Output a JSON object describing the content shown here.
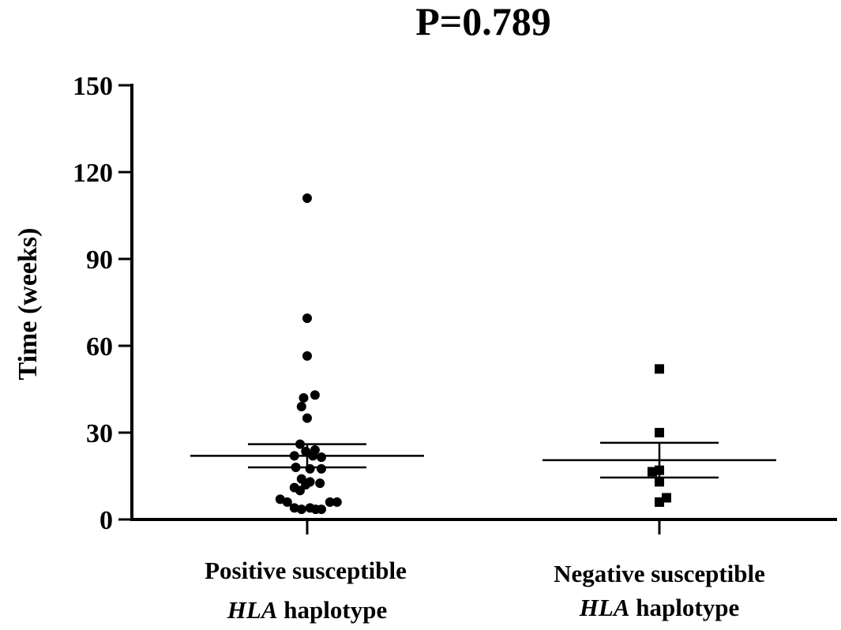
{
  "chart_data": {
    "type": "scatter",
    "title": "P=0.789",
    "ylabel": "Time (weeks)",
    "xlabel": "",
    "ylim": [
      0,
      150
    ],
    "yticks": [
      0,
      30,
      60,
      90,
      120,
      150
    ],
    "ytick_labels": [
      "0",
      "30",
      "60",
      "90",
      "120",
      "150"
    ],
    "grid": false,
    "categories": [
      {
        "line1": "Positive susceptible",
        "line2_italic": "HLA",
        "line2_rest": " haplotype"
      },
      {
        "line1": "Negative susceptible",
        "line2_italic": "HLA",
        "line2_rest": " haplotype"
      }
    ],
    "series": [
      {
        "name": "Positive susceptible HLA haplotype",
        "marker": "circle",
        "values": [
          111,
          69.5,
          56.5,
          43,
          42,
          39,
          35,
          26,
          24,
          23.5,
          22,
          22,
          21.5,
          18,
          17.5,
          17.5,
          14,
          13,
          12.5,
          12,
          11,
          10,
          7,
          6,
          6,
          6,
          4,
          4,
          3.5,
          3.5,
          3.5
        ],
        "offsets": [
          0,
          0,
          0,
          0.55,
          -0.25,
          -0.4,
          0,
          -0.5,
          0.55,
          -0.1,
          -0.9,
          0.4,
          1.0,
          -0.8,
          0.2,
          1.0,
          -0.4,
          0.2,
          0.9,
          -0.1,
          -0.9,
          -0.5,
          -1.9,
          -1.4,
          1.6,
          2.1,
          -0.9,
          0.2,
          -0.4,
          0.6,
          1.0
        ],
        "mean": 22,
        "sem_low": 18,
        "sem_high": 26
      },
      {
        "name": "Negative susceptible HLA haplotype",
        "marker": "square",
        "values": [
          52,
          30,
          17,
          16.5,
          13,
          7.5,
          6
        ],
        "offsets": [
          0,
          0,
          0,
          -0.5,
          0,
          0.5,
          0
        ],
        "mean": 20.5,
        "sem_low": 14.5,
        "sem_high": 26.5
      }
    ]
  }
}
